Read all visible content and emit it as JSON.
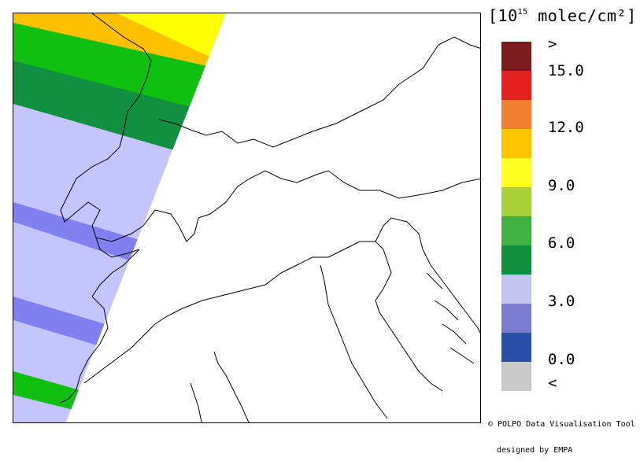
{
  "unit": {
    "prefix": "[10",
    "exponent": "15",
    "suffix": " molec/cm²]"
  },
  "legend": {
    "colors": [
      "#7a1a1a",
      "#e82020",
      "#f08030",
      "#ffc400",
      "#ffff20",
      "#a8cf38",
      "#40b040",
      "#109040",
      "#c4c4ee",
      "#7b7bd0",
      "#2850a8",
      "#c8c8c8"
    ],
    "labels": [
      ">",
      "15.0",
      "12.0",
      "9.0",
      "6.0",
      "3.0",
      "0.0",
      "<"
    ]
  },
  "credit": {
    "line1": "© POLPO Data Visualisation Tool",
    "line2": "designed by EMPA"
  },
  "map": {
    "swath_color_lavender": "#c4c4ff",
    "swath_color_blue": "#8080f0",
    "swath_color_green": "#10c010",
    "swath_color_darkgreen": "#109040",
    "swath_color_yellow": "#ffff00",
    "swath_color_orange": "#ffc000"
  }
}
